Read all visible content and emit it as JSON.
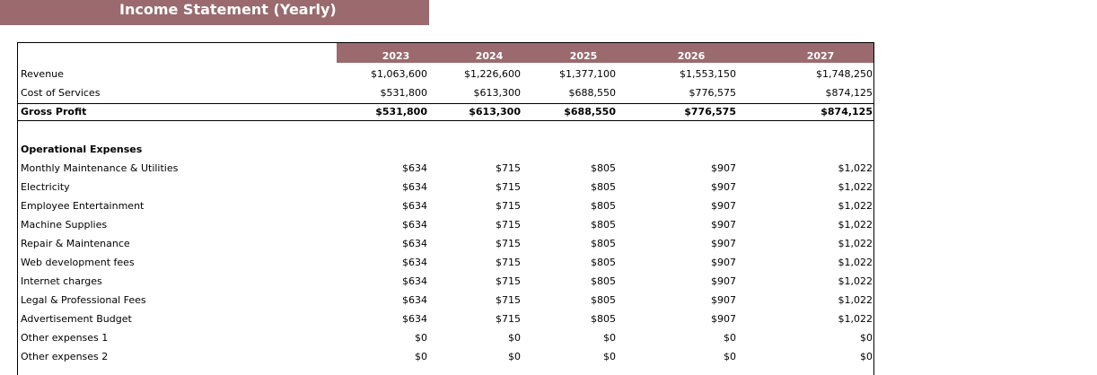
{
  "title": "Income Statement (Yearly)",
  "years": [
    "2023",
    "2024",
    "2025",
    "2026",
    "2027"
  ],
  "rows": [
    {
      "label": "Revenue",
      "values": [
        "$1,063,600",
        "$1,226,600",
        "$1,377,100",
        "$1,553,150",
        "$1,748,250"
      ]
    },
    {
      "label": "Cost of Services",
      "values": [
        "$531,800",
        "$613,300",
        "$688,550",
        "$776,575",
        "$874,125"
      ]
    },
    {
      "label": "Gross Profit",
      "values": [
        "$531,800",
        "$613,300",
        "$688,550",
        "$776,575",
        "$874,125"
      ]
    },
    {
      "label": "Operational Expenses",
      "values": []
    },
    {
      "label": "Monthly Maintenance & Utilities",
      "values": [
        "$634",
        "$715",
        "$805",
        "$907",
        "$1,022"
      ]
    },
    {
      "label": "Electricity",
      "values": [
        "$634",
        "$715",
        "$805",
        "$907",
        "$1,022"
      ]
    },
    {
      "label": "Employee Entertainment",
      "values": [
        "$634",
        "$715",
        "$805",
        "$907",
        "$1,022"
      ]
    },
    {
      "label": "Machine Supplies",
      "values": [
        "$634",
        "$715",
        "$805",
        "$907",
        "$1,022"
      ]
    },
    {
      "label": "Repair & Maintenance",
      "values": [
        "$634",
        "$715",
        "$805",
        "$907",
        "$1,022"
      ]
    },
    {
      "label": "Web development fees",
      "values": [
        "$634",
        "$715",
        "$805",
        "$907",
        "$1,022"
      ]
    },
    {
      "label": "Internet charges",
      "values": [
        "$634",
        "$715",
        "$805",
        "$907",
        "$1,022"
      ]
    },
    {
      "label": "Legal & Professional Fees",
      "values": [
        "$634",
        "$715",
        "$805",
        "$907",
        "$1,022"
      ]
    },
    {
      "label": "Advertisement Budget",
      "values": [
        "$634",
        "$715",
        "$805",
        "$907",
        "$1,022"
      ]
    },
    {
      "label": "Other expenses 1",
      "values": [
        "$0",
        "$0",
        "$0",
        "$0",
        "$0"
      ]
    },
    {
      "label": "Other expenses 2",
      "values": [
        "$0",
        "$0",
        "$0",
        "$0",
        "$0"
      ]
    }
  ]
}
